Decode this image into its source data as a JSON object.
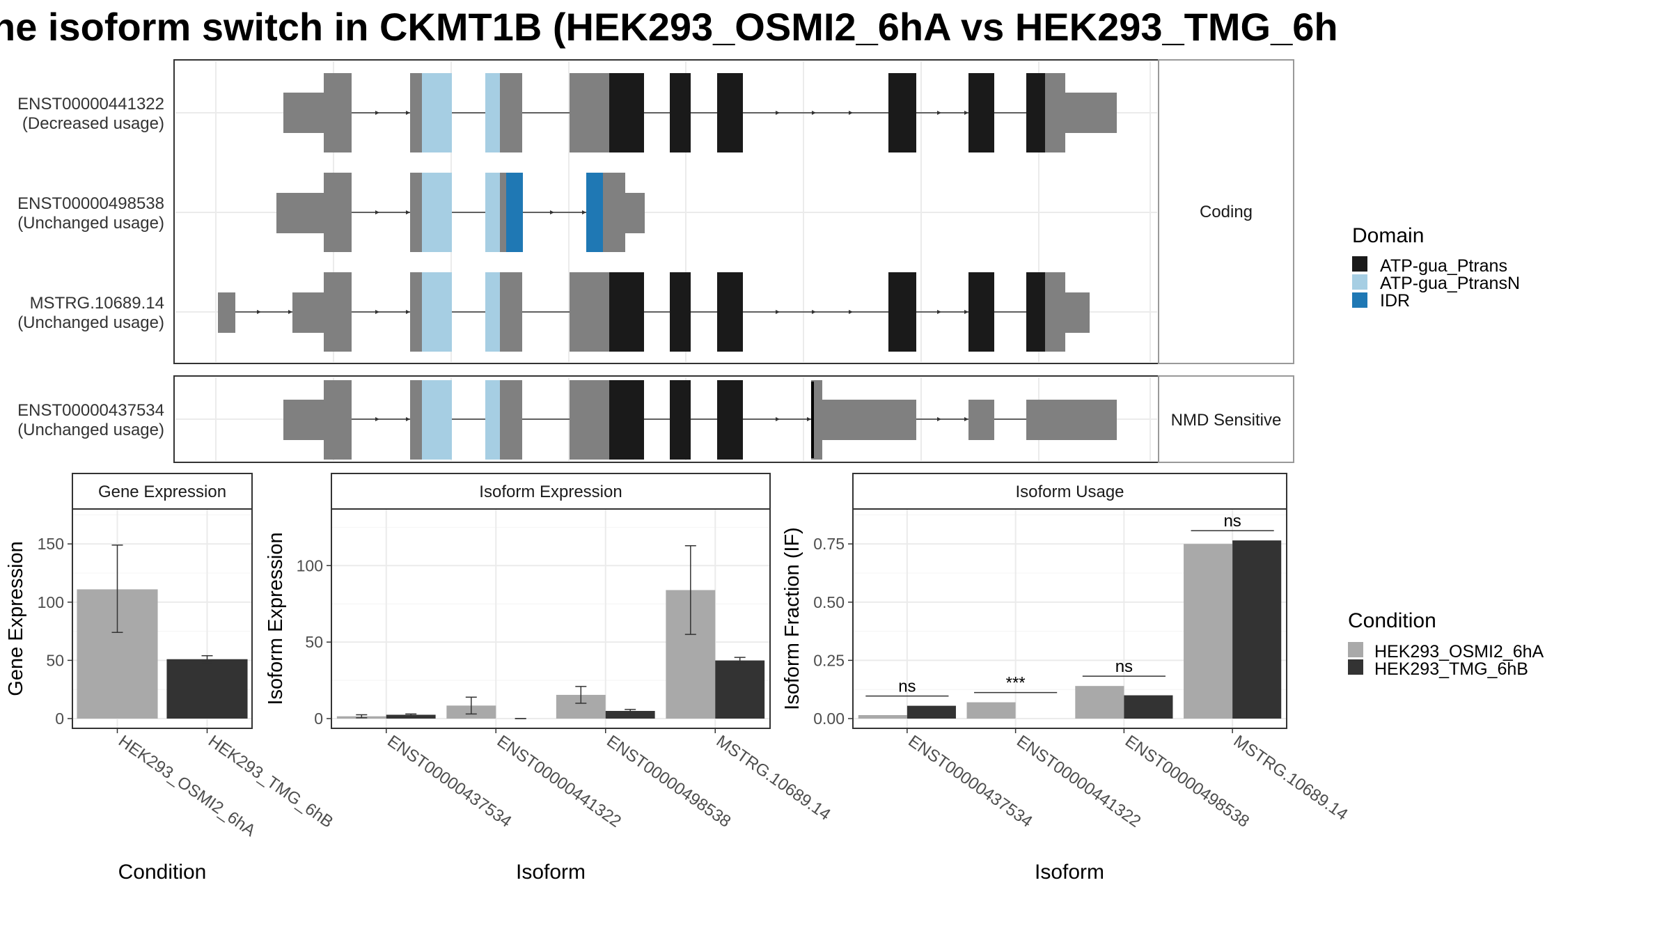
{
  "figure": {
    "title": "ne isoform switch in CKMT1B (HEK293_OSMI2_6hA vs HEK293_TMG_6h"
  },
  "transcripts": [
    {
      "id": "ENST00000441322",
      "usage": "(Decreased usage)",
      "group": "Coding"
    },
    {
      "id": "ENST00000498538",
      "usage": "(Unchanged usage)",
      "group": "Coding"
    },
    {
      "id": "MSTRG.10689.14",
      "usage": "(Unchanged usage)",
      "group": "Coding"
    },
    {
      "id": "ENST00000437534",
      "usage": "(Unchanged usage)",
      "group": "NMD Sensitive"
    }
  ],
  "facets": {
    "coding": "Coding",
    "nmd": "NMD Sensitive"
  },
  "domain_legend": {
    "title": "Domain",
    "items": [
      {
        "name": "ATP-gua_Ptrans",
        "color": "#1a1a1a"
      },
      {
        "name": "ATP-gua_PtransN",
        "color": "#a6cee3"
      },
      {
        "name": "IDR",
        "color": "#1f78b4"
      }
    ]
  },
  "condition_legend": {
    "title": "Condition",
    "items": [
      {
        "name": "HEK293_OSMI2_6hA",
        "color": "#a9a9a9"
      },
      {
        "name": "HEK293_TMG_6hB",
        "color": "#333333"
      }
    ]
  },
  "chart_data": [
    {
      "type": "bar",
      "title": "Gene Expression",
      "xlabel": "Condition",
      "ylabel": "Gene Expression",
      "ylim": [
        0,
        180
      ],
      "yticks": [
        0,
        50,
        100,
        150
      ],
      "categories": [
        "HEK293_OSMI2_6hA",
        "HEK293_TMG_6hB"
      ],
      "values": [
        111,
        51
      ],
      "error": [
        [
          74,
          149
        ],
        [
          48,
          54
        ]
      ]
    },
    {
      "type": "bar",
      "title": "Isoform Expression",
      "xlabel": "Isoform",
      "ylabel": "Isoform Expression",
      "ylim": [
        0,
        137
      ],
      "yticks": [
        0,
        50,
        100
      ],
      "categories": [
        "ENST00000437534",
        "ENST00000441322",
        "ENST00000498538",
        "MSTRG.10689.14"
      ],
      "series": [
        {
          "name": "HEK293_OSMI2_6hA",
          "values": [
            1.5,
            8.5,
            15.5,
            84
          ],
          "error": [
            [
              0.5,
              2.5
            ],
            [
              3,
              14
            ],
            [
              10,
              21
            ],
            [
              55,
              113
            ]
          ]
        },
        {
          "name": "HEK293_TMG_6hB",
          "values": [
            2.5,
            0,
            5,
            38
          ],
          "error": [
            [
              2,
              3
            ],
            [
              0,
              0
            ],
            [
              4,
              6
            ],
            [
              36,
              40
            ]
          ]
        }
      ]
    },
    {
      "type": "bar",
      "title": "Isoform Usage",
      "xlabel": "Isoform",
      "ylabel": "Isoform Fraction (IF)",
      "ylim": [
        0,
        0.9
      ],
      "yticks": [
        "0.00",
        "0.25",
        "0.50",
        "0.75"
      ],
      "categories": [
        "ENST00000437534",
        "ENST00000441322",
        "ENST00000498538",
        "MSTRG.10689.14"
      ],
      "series": [
        {
          "name": "HEK293_OSMI2_6hA",
          "values": [
            0.015,
            0.07,
            0.14,
            0.75
          ]
        },
        {
          "name": "HEK293_TMG_6hB",
          "values": [
            0.055,
            0.0,
            0.1,
            0.765
          ]
        }
      ],
      "significance": [
        "ns",
        "***",
        "ns",
        "ns"
      ]
    }
  ]
}
